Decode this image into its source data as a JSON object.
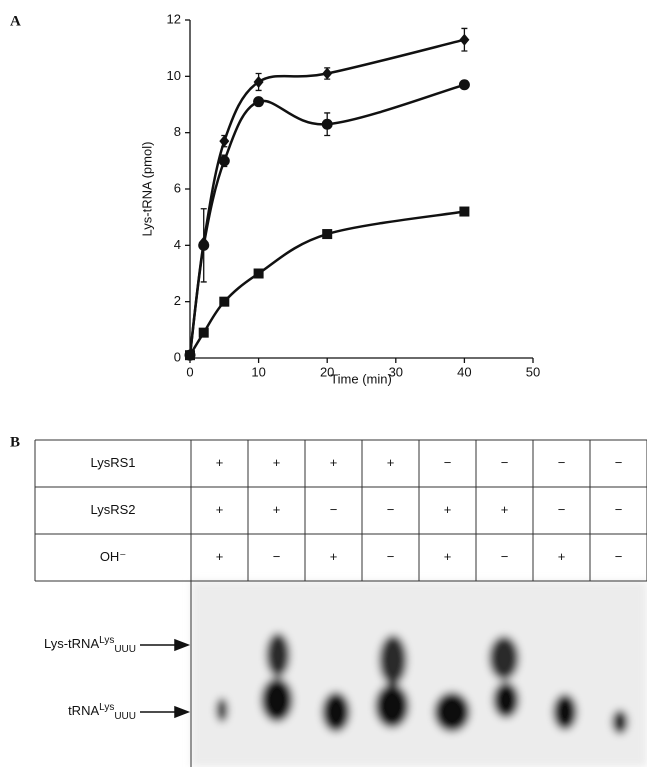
{
  "chart_data": {
    "type": "line",
    "panel": "A",
    "xlabel": "Time (min)",
    "ylabel": "Lys-tRNA (pmol)",
    "x": [
      0,
      2,
      5,
      10,
      20,
      40
    ],
    "series": [
      {
        "marker": "diamond",
        "color": "#111111",
        "values": [
          0.1,
          4.1,
          7.7,
          9.8,
          10.1,
          11.3
        ],
        "errors": [
          0,
          0,
          0.2,
          0.3,
          0.2,
          0.4
        ]
      },
      {
        "marker": "circle",
        "color": "#111111",
        "values": [
          0.1,
          4.0,
          7.0,
          9.1,
          8.3,
          9.7
        ],
        "errors": [
          0,
          1.3,
          0.2,
          0.1,
          0.4,
          0.1
        ]
      },
      {
        "marker": "square",
        "color": "#111111",
        "values": [
          0.1,
          0.9,
          2.0,
          3.0,
          4.4,
          5.2
        ],
        "errors": [
          0,
          0,
          0,
          0,
          0.1,
          0.1
        ]
      }
    ],
    "xlim": [
      0,
      50
    ],
    "xticks": [
      0,
      10,
      20,
      30,
      40,
      50
    ],
    "ylim": [
      0,
      12
    ],
    "yticks": [
      0,
      2,
      4,
      6,
      8,
      10,
      12
    ]
  },
  "panel_b": "B",
  "table": {
    "rows": [
      {
        "label": "LysRS1",
        "cells": [
          "+",
          "+",
          "+",
          "+",
          "−",
          "−",
          "−",
          "−"
        ]
      },
      {
        "label": "LysRS2",
        "cells": [
          "+",
          "+",
          "−",
          "−",
          "+",
          "+",
          "−",
          "−"
        ]
      },
      {
        "label": "OH⁻",
        "cells": [
          "+",
          "−",
          "+",
          "−",
          "+",
          "−",
          "+",
          "−"
        ]
      }
    ]
  },
  "gel": {
    "labels": [
      {
        "base": "Lys-tRNA",
        "sup": "Lys",
        "sub": "UUU"
      },
      {
        "base": "tRNA",
        "sup": "Lys",
        "sub": "UUU"
      }
    ]
  }
}
